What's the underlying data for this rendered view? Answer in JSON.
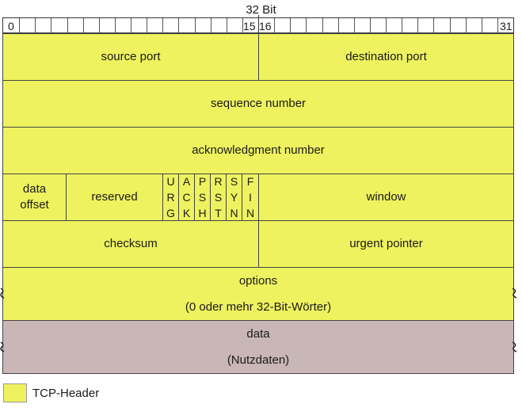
{
  "title": "32 Bit",
  "bit_numbers": {
    "first": "0",
    "mid_left": "15",
    "mid_right": "16",
    "last": "31"
  },
  "fields": {
    "source_port": "source port",
    "destination_port": "destination port",
    "sequence_number": "sequence number",
    "acknowledgment_number": "acknowledgment number",
    "data_offset_line1": "data",
    "data_offset_line2": "offset",
    "reserved": "reserved",
    "flags": [
      {
        "name": "urg",
        "letters": [
          "U",
          "R",
          "G"
        ]
      },
      {
        "name": "ack",
        "letters": [
          "A",
          "C",
          "K"
        ]
      },
      {
        "name": "psh",
        "letters": [
          "P",
          "S",
          "H"
        ]
      },
      {
        "name": "rst",
        "letters": [
          "R",
          "S",
          "T"
        ]
      },
      {
        "name": "syn",
        "letters": [
          "S",
          "Y",
          "N"
        ]
      },
      {
        "name": "fin",
        "letters": [
          "F",
          "I",
          "N"
        ]
      }
    ],
    "window": "window",
    "checksum": "checksum",
    "urgent_pointer": "urgent pointer",
    "options": "options",
    "options_note": "(0 oder mehr 32-Bit-Wörter)",
    "data": "data",
    "data_note": "(Nutzdaten)"
  },
  "legend": {
    "label": "TCP-Header"
  },
  "colors": {
    "header": "#eef25e",
    "data": "#c9b6b6",
    "border": "#444444"
  }
}
